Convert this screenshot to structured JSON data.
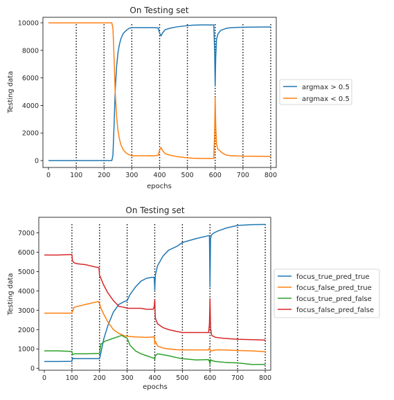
{
  "chart_data": [
    {
      "type": "line",
      "title": "On Testing set",
      "xlabel": "epochs",
      "ylabel": "Testing data",
      "xlim": [
        -20,
        820
      ],
      "ylim": [
        -500,
        10400
      ],
      "xticks": [
        0,
        100,
        200,
        300,
        400,
        500,
        600,
        700,
        800
      ],
      "yticks": [
        0,
        2000,
        4000,
        6000,
        8000,
        10000
      ],
      "vlines": [
        100,
        200,
        300,
        400,
        500,
        600,
        700,
        800
      ],
      "legend_position": "outside-right",
      "series": [
        {
          "name": "argmax > 0.5",
          "color": "#1f77b4",
          "x": [
            0,
            100,
            200,
            228,
            232,
            236,
            240,
            245,
            250,
            255,
            260,
            265,
            270,
            280,
            290,
            300,
            320,
            350,
            380,
            395,
            400,
            405,
            410,
            420,
            440,
            460,
            480,
            500,
            520,
            550,
            580,
            595,
            598,
            600,
            602,
            605,
            610,
            620,
            640,
            660,
            700,
            750,
            800
          ],
          "y": [
            0,
            0,
            0,
            0,
            400,
            2500,
            5000,
            6800,
            7800,
            8400,
            8800,
            9050,
            9250,
            9450,
            9600,
            9650,
            9650,
            9650,
            9650,
            9620,
            9250,
            9050,
            9250,
            9500,
            9620,
            9700,
            9750,
            9800,
            9830,
            9850,
            9850,
            9850,
            8000,
            5400,
            7500,
            8800,
            9200,
            9450,
            9600,
            9650,
            9680,
            9690,
            9700
          ]
        },
        {
          "name": "argmax < 0.5",
          "color": "#ff7f0e",
          "x": [
            0,
            100,
            200,
            228,
            232,
            236,
            240,
            245,
            250,
            255,
            260,
            265,
            270,
            280,
            290,
            300,
            320,
            350,
            380,
            395,
            400,
            405,
            410,
            420,
            440,
            460,
            480,
            500,
            520,
            550,
            580,
            595,
            598,
            600,
            602,
            605,
            610,
            615,
            620,
            630,
            640,
            660,
            700,
            750,
            800
          ],
          "y": [
            10000,
            10000,
            10000,
            10000,
            9600,
            7500,
            5000,
            3200,
            2200,
            1600,
            1200,
            950,
            750,
            550,
            420,
            350,
            350,
            350,
            350,
            380,
            750,
            950,
            750,
            500,
            380,
            300,
            250,
            200,
            170,
            150,
            150,
            150,
            2000,
            4600,
            2500,
            1200,
            800,
            750,
            650,
            500,
            400,
            350,
            320,
            310,
            300
          ]
        }
      ]
    },
    {
      "type": "line",
      "title": "On Testing set",
      "xlabel": "epochs",
      "ylabel": "Testing data",
      "xlim": [
        -20,
        820
      ],
      "ylim": [
        -100,
        7800
      ],
      "xticks": [
        0,
        100,
        200,
        300,
        400,
        500,
        600,
        700,
        800
      ],
      "yticks": [
        0,
        1000,
        2000,
        3000,
        4000,
        5000,
        6000,
        7000
      ],
      "vlines": [
        100,
        200,
        300,
        400,
        500,
        600,
        700,
        800
      ],
      "legend_position": "outside-right",
      "series": [
        {
          "name": "focus_true_pred_true",
          "color": "#1f77b4",
          "x": [
            0,
            50,
            100,
            102,
            110,
            150,
            200,
            205,
            215,
            230,
            250,
            270,
            290,
            300,
            310,
            330,
            350,
            370,
            390,
            398,
            400,
            402,
            410,
            430,
            450,
            480,
            500,
            550,
            595,
            598,
            600,
            602,
            606,
            615,
            630,
            660,
            700,
            750,
            800
          ],
          "y": [
            350,
            350,
            360,
            520,
            500,
            500,
            500,
            800,
            1500,
            2200,
            2900,
            3300,
            3450,
            3500,
            3800,
            4200,
            4500,
            4650,
            4700,
            4700,
            4050,
            4800,
            5300,
            5800,
            6100,
            6300,
            6500,
            6700,
            6850,
            6850,
            4200,
            6700,
            6900,
            7000,
            7100,
            7250,
            7380,
            7420,
            7430
          ]
        },
        {
          "name": "focus_false_pred_true",
          "color": "#ff7f0e",
          "x": [
            0,
            50,
            100,
            102,
            108,
            120,
            150,
            180,
            195,
            200,
            205,
            215,
            230,
            250,
            270,
            290,
            300,
            330,
            350,
            370,
            395,
            398,
            400,
            402,
            410,
            430,
            450,
            480,
            500,
            550,
            595,
            598,
            600,
            602,
            605,
            620,
            650,
            700,
            750,
            800
          ],
          "y": [
            2850,
            2850,
            2850,
            2950,
            3150,
            3200,
            3300,
            3400,
            3450,
            3350,
            3100,
            2800,
            2400,
            2000,
            1800,
            1680,
            1650,
            1620,
            1610,
            1600,
            1620,
            1650,
            1250,
            1400,
            1150,
            1050,
            1000,
            960,
            950,
            950,
            950,
            1050,
            1000,
            900,
            900,
            950,
            950,
            920,
            900,
            860
          ]
        },
        {
          "name": "focus_true_pred_false",
          "color": "#2ca02c",
          "x": [
            0,
            50,
            100,
            102,
            110,
            150,
            200,
            205,
            220,
            240,
            260,
            280,
            290,
            300,
            310,
            330,
            350,
            370,
            390,
            398,
            400,
            402,
            410,
            430,
            450,
            480,
            500,
            550,
            595,
            598,
            600,
            602,
            606,
            620,
            660,
            700,
            750,
            800
          ],
          "y": [
            900,
            900,
            870,
            700,
            750,
            750,
            770,
            1250,
            1400,
            1500,
            1600,
            1700,
            1620,
            1550,
            1200,
            900,
            750,
            650,
            550,
            520,
            450,
            650,
            750,
            700,
            650,
            550,
            500,
            430,
            450,
            350,
            200,
            450,
            400,
            350,
            300,
            280,
            200,
            200
          ]
        },
        {
          "name": "focus_false_pred_false",
          "color": "#d62728",
          "x": [
            0,
            50,
            100,
            102,
            108,
            120,
            150,
            180,
            198,
            200,
            205,
            215,
            230,
            250,
            270,
            290,
            300,
            330,
            350,
            370,
            395,
            398,
            400,
            402,
            410,
            430,
            450,
            480,
            500,
            550,
            595,
            598,
            600,
            602,
            606,
            620,
            650,
            700,
            750,
            800
          ],
          "y": [
            5850,
            5850,
            5880,
            5550,
            5450,
            5400,
            5350,
            5250,
            5200,
            4800,
            4650,
            4300,
            3900,
            3500,
            3200,
            3150,
            3100,
            3100,
            3100,
            3050,
            3050,
            3200,
            3550,
            2600,
            2300,
            2100,
            2000,
            1900,
            1850,
            1850,
            1850,
            2300,
            3600,
            2100,
            1700,
            1600,
            1550,
            1500,
            1480,
            1460
          ]
        }
      ]
    }
  ]
}
